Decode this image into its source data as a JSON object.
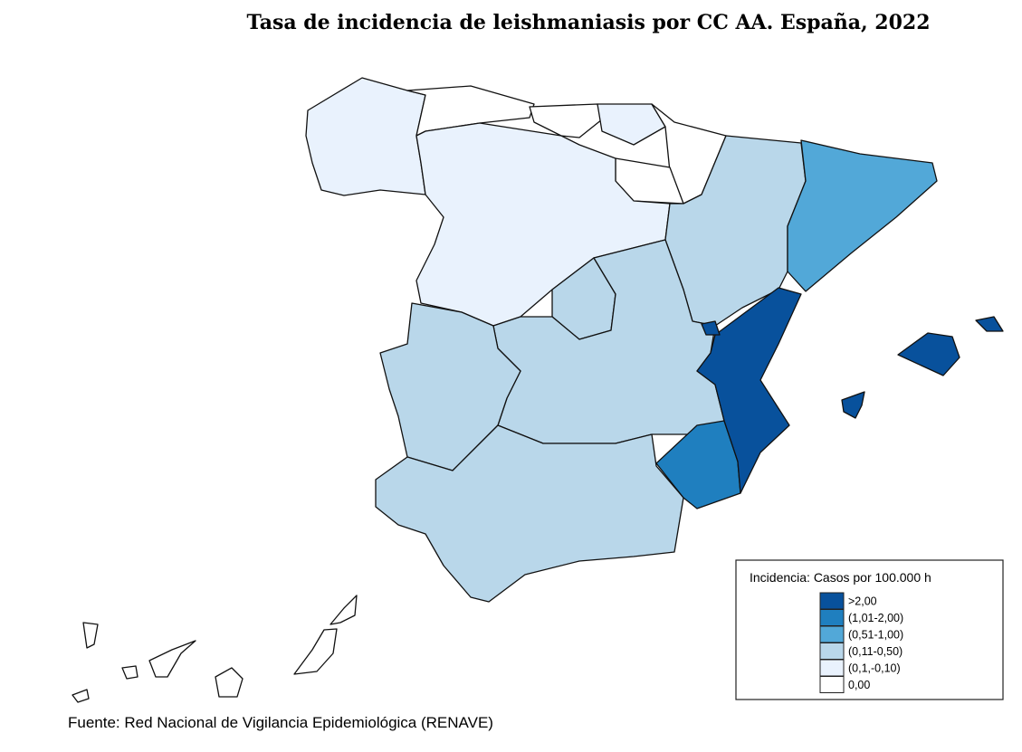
{
  "title": "Tasa de incidencia de leishmaniasis por CC AA. España, 2022",
  "legend": {
    "title": "Incidencia: Casos por 100.000 h",
    "items": [
      {
        "label": ">2,00",
        "color": "#08519c"
      },
      {
        "label": "(1,01-2,00)",
        "color": "#1f7fbf"
      },
      {
        "label": "(0,51-1,00)",
        "color": "#52a8d8"
      },
      {
        "label": "(0,11-0,50)",
        "color": "#b9d7ea"
      },
      {
        "label": "(0,1,-0,10)",
        "color": "#e9f2fd"
      },
      {
        "label": "0,00",
        "color": "#ffffff"
      }
    ]
  },
  "source": "Fuente: Red Nacional de Vigilancia Epidemiológica (RENAVE)"
}
